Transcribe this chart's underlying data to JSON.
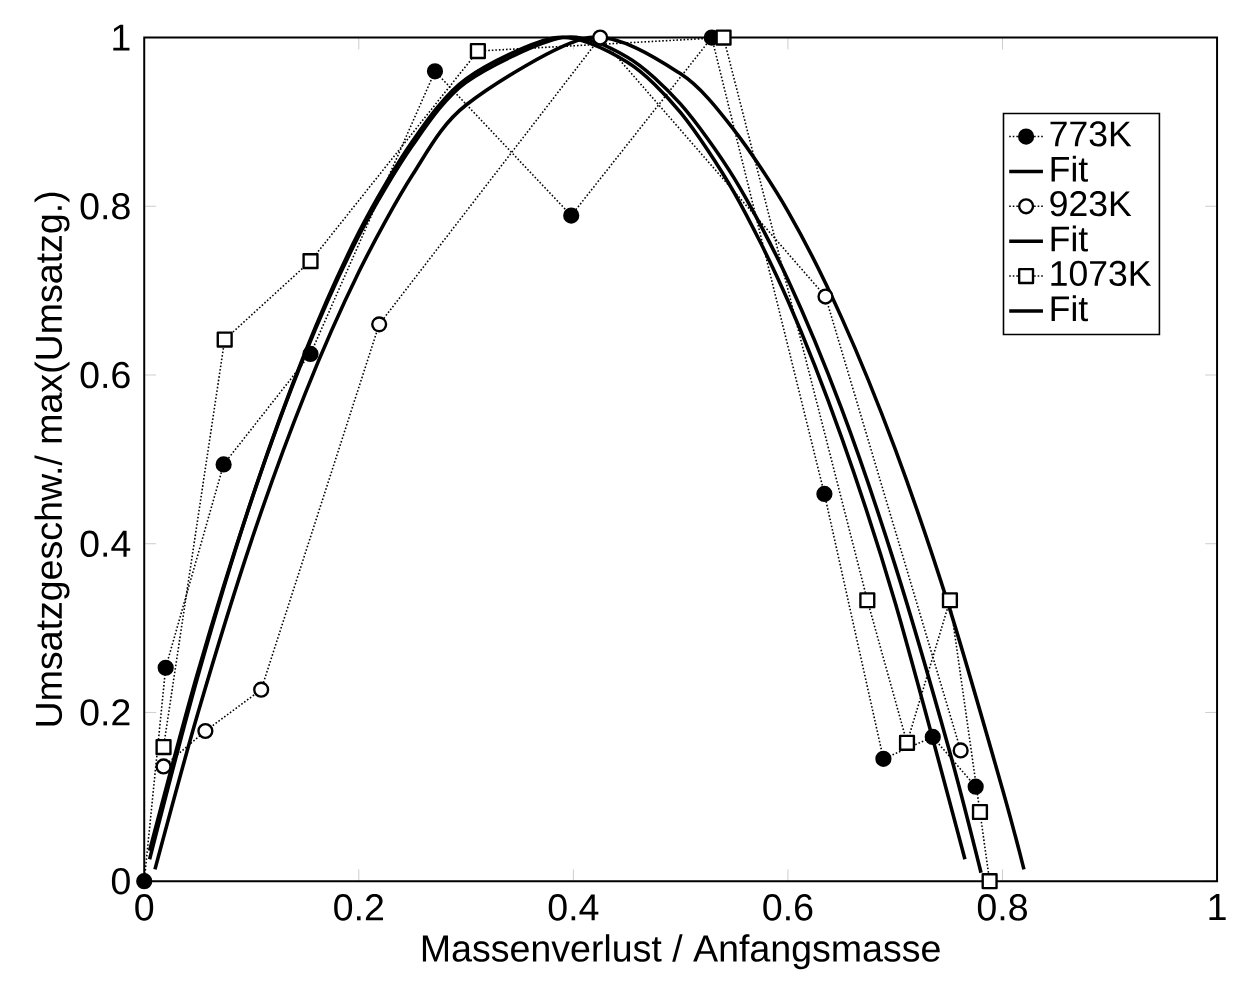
{
  "chart_data": {
    "type": "line",
    "xlabel": "Massenverlust / Anfangsmasse",
    "ylabel": "Umsatzgeschw./ max(Umsatzg.)",
    "xlim": [
      0,
      1
    ],
    "ylim": [
      0,
      1
    ],
    "xticks": [
      0,
      0.2,
      0.4,
      0.6,
      0.8,
      1
    ],
    "yticks": [
      0,
      0.2,
      0.4,
      0.6,
      0.8,
      1
    ],
    "grid": false,
    "legend": "top right",
    "series": [
      {
        "name": "773K",
        "color": "#000000",
        "marker": "circle",
        "line_style": "dotted",
        "x": [
          0,
          0.02,
          0.074,
          0.155,
          0.271,
          0.398,
          0.529,
          0.634,
          0.689,
          0.735,
          0.775
        ],
        "values": [
          0,
          0.253,
          0.494,
          0.625,
          0.96,
          0.789,
          1.0,
          0.459,
          0.145,
          0.171,
          0.112
        ]
      },
      {
        "name": "Fit",
        "color": "#000000",
        "marker": "none",
        "line_style": "solid",
        "x": [
          0.005,
          0.05,
          0.1,
          0.15,
          0.2,
          0.25,
          0.3,
          0.385,
          0.45,
          0.5,
          0.55,
          0.6,
          0.65,
          0.7,
          0.765
        ],
        "values": [
          0.026,
          0.243,
          0.452,
          0.627,
          0.769,
          0.877,
          0.951,
          1.0,
          0.971,
          0.911,
          0.816,
          0.688,
          0.526,
          0.33,
          0.026
        ]
      },
      {
        "name": "923K",
        "color": "#000000",
        "marker": "circle",
        "line_style": "dotted",
        "x": [
          0.018,
          0.057,
          0.109,
          0.219,
          0.425,
          0.635,
          0.761
        ],
        "values": [
          0.136,
          0.178,
          0.227,
          0.66,
          1.0,
          0.693,
          0.155
        ]
      },
      {
        "name": "Fit",
        "color": "#000000",
        "marker": "none",
        "line_style": "solid",
        "x": [
          0.005,
          0.05,
          0.1,
          0.15,
          0.2,
          0.25,
          0.3,
          0.39,
          0.45,
          0.5,
          0.55,
          0.6,
          0.65,
          0.7,
          0.75,
          0.78
        ],
        "values": [
          0.036,
          0.248,
          0.452,
          0.625,
          0.765,
          0.872,
          0.947,
          1.0,
          0.977,
          0.921,
          0.833,
          0.713,
          0.56,
          0.374,
          0.157,
          0.01
        ]
      },
      {
        "name": "1073K",
        "color": "#000000",
        "marker": "square",
        "line_style": "dotted",
        "x": [
          0.018,
          0.075,
          0.155,
          0.311,
          0.54,
          0.674,
          0.711,
          0.751,
          0.779,
          0.788
        ],
        "values": [
          0.159,
          0.642,
          0.735,
          0.984,
          1.0,
          0.333,
          0.164,
          0.333,
          0.082,
          0.0
        ]
      },
      {
        "name": "Fit",
        "color": "#000000",
        "marker": "none",
        "line_style": "solid",
        "x": [
          0.01,
          0.05,
          0.1,
          0.15,
          0.2,
          0.25,
          0.3,
          0.415,
          0.5,
          0.55,
          0.6,
          0.65,
          0.7,
          0.75,
          0.8,
          0.82
        ],
        "values": [
          0.014,
          0.199,
          0.404,
          0.578,
          0.722,
          0.837,
          0.92,
          1.0,
          0.957,
          0.89,
          0.794,
          0.668,
          0.512,
          0.326,
          0.109,
          0.014
        ]
      }
    ]
  }
}
